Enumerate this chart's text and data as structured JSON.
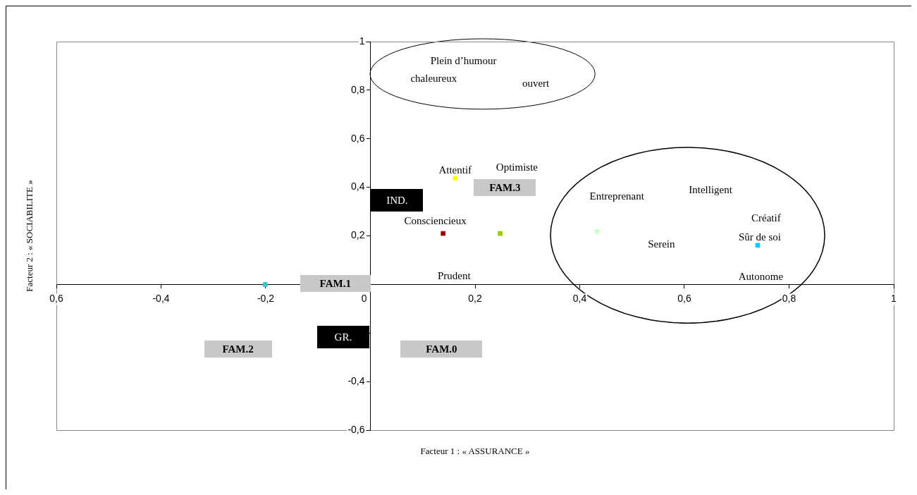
{
  "chart_data": {
    "type": "scatter",
    "xlabel": "Facteur 1 : « ASSURANCE »",
    "ylabel": "Facteur 2 : « SOCIABILITE »",
    "x": [
      0.162,
      0.139,
      0.248,
      0.433,
      0.74,
      -0.201
    ],
    "values": [
      0.437,
      0.21,
      0.21,
      0.218,
      0.161,
      0
    ],
    "colors": [
      "#ffff00",
      "#990000",
      "#99cc00",
      "#ccffcc",
      "#00ccff",
      "#33cccc"
    ],
    "marker": "square",
    "xlim": [
      -0.6,
      1
    ],
    "ylim": [
      -0.6,
      1
    ],
    "xticks": [
      {
        "value": -0.6,
        "label": "0,6"
      },
      {
        "value": -0.4,
        "label": "-0,4"
      },
      {
        "value": -0.2,
        "label": "-0,2"
      },
      0,
      {
        "value": 0.2,
        "label": "0,2"
      },
      {
        "value": 0.4,
        "label": "0,4"
      },
      {
        "value": 0.6,
        "label": "0,6"
      },
      {
        "value": 0.8,
        "label": "0,8"
      },
      1
    ],
    "yticks": [
      {
        "value": -0.6,
        "label": "-0,6"
      },
      {
        "value": -0.4,
        "label": "-0,4"
      },
      {
        "value": -0.2,
        "label": null
      },
      {
        "value": 0,
        "label": null
      },
      {
        "value": 0.2,
        "label": "0,2"
      },
      {
        "value": 0.4,
        "label": "0,4"
      },
      {
        "value": 0.6,
        "label": "0,6"
      },
      {
        "value": 0.8,
        "label": "0,8"
      },
      1
    ],
    "annotations": [
      "Plein d’humour",
      "chaleureux",
      "ouvert",
      "Attentif",
      "Optimiste",
      "FAM.3",
      "IND.",
      "Consciencieux",
      "Entreprenant",
      "Intelligent",
      "Créatif",
      "Sûr de soi",
      "Serein",
      "Autonome",
      "Prudent",
      "FAM.1",
      "GR.",
      "FAM.2",
      "FAM.0"
    ]
  }
}
